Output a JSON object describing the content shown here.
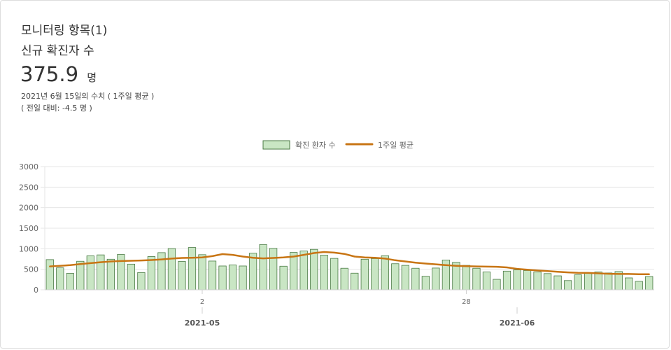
{
  "header": {
    "title": "모니터링 항목(1)",
    "subtitle": "신규 확진자 수",
    "value": "375.9",
    "unit": "명",
    "date_note": "2021년 6월 15일의 수치 ( 1주일 평균 )",
    "change_note": "( 전일 대비: -4.5 명 )"
  },
  "colors": {
    "bar_fill": "#c9e6c4",
    "bar_stroke": "#4a7a44",
    "line": "#c87514",
    "grid": "#e6e6e6",
    "axis_text": "#666666"
  },
  "chart_data": {
    "type": "bar",
    "legend": [
      "확진 환자 수",
      "1주일 평균"
    ],
    "legend_position": "top",
    "grid": true,
    "ylim": [
      0,
      3000
    ],
    "y_ticks": [
      "0",
      "500",
      "1000",
      "1500",
      "2000",
      "2500",
      "3000"
    ],
    "x_day_ticks": [
      {
        "label": "2",
        "index": 15
      },
      {
        "label": "28",
        "index": 41
      }
    ],
    "x_month_ticks": [
      {
        "label": "2021-05",
        "index": 15
      },
      {
        "label": "2021-06",
        "index": 46
      }
    ],
    "x_start": "2021-04-17",
    "x_end": "2021-06-15",
    "series": [
      {
        "name": "확진 환자 수",
        "type": "bar",
        "values": [
          735,
          535,
          400,
          695,
          828,
          850,
          745,
          860,
          625,
          420,
          810,
          905,
          1005,
          690,
          1030,
          855,
          700,
          580,
          605,
          580,
          890,
          1100,
          1010,
          575,
          910,
          945,
          985,
          845,
          765,
          525,
          405,
          745,
          760,
          830,
          635,
          595,
          525,
          330,
          530,
          725,
          670,
          595,
          525,
          435,
          255,
          455,
          485,
          470,
          435,
          395,
          340,
          225,
          365,
          420,
          435,
          410,
          445,
          290,
          205,
          325
        ]
      },
      {
        "name": "1주일 평균",
        "type": "line",
        "values": [
          570,
          585,
          600,
          625,
          650,
          672,
          690,
          700,
          707,
          715,
          725,
          740,
          760,
          775,
          780,
          790,
          820,
          870,
          850,
          810,
          780,
          765,
          775,
          790,
          810,
          850,
          895,
          920,
          905,
          875,
          810,
          790,
          780,
          760,
          720,
          690,
          660,
          640,
          620,
          600,
          585,
          575,
          570,
          565,
          560,
          545,
          510,
          490,
          470,
          455,
          440,
          425,
          415,
          410,
          400,
          390,
          385,
          385,
          380,
          378
        ]
      }
    ]
  }
}
